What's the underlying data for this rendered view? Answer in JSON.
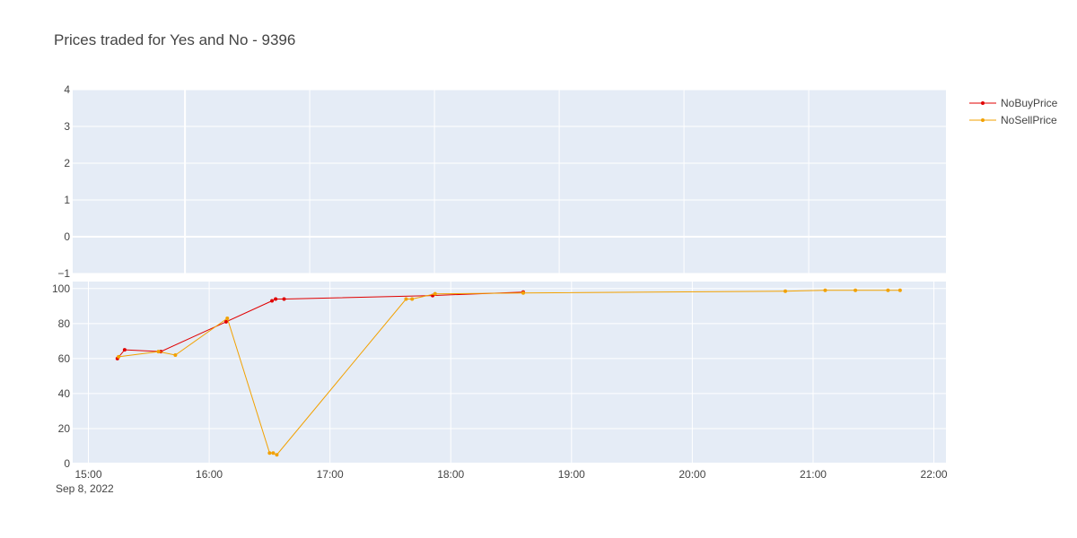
{
  "chart_data": {
    "type": "line",
    "title": "Prices traded for Yes and No - 9396",
    "legend_position": "top-right",
    "grid": true,
    "colors": {
      "plot_bg": "#e5ecf6",
      "grid": "#ffffff",
      "text": "#444444"
    },
    "top_panel": {
      "ylim": [
        -1,
        4
      ],
      "yticks": [
        4,
        3,
        2,
        1,
        0,
        -1
      ],
      "ytick_labels": [
        "4",
        "3",
        "2",
        "1",
        "0",
        "−1"
      ],
      "xlim": [
        -0.9,
        6.1
      ],
      "xgrid": [
        0,
        1,
        2,
        3,
        4,
        5
      ]
    },
    "bottom_panel": {
      "ylim": [
        0,
        104
      ],
      "yticks": [
        0,
        20,
        40,
        60,
        80,
        100
      ],
      "ytick_labels": [
        "0",
        "20",
        "40",
        "60",
        "80",
        "100"
      ],
      "xlim": [
        14.87,
        22.1
      ],
      "xticks": [
        15,
        16,
        17,
        18,
        19,
        20,
        21,
        22
      ],
      "xtick_labels": [
        "15:00",
        "16:00",
        "17:00",
        "18:00",
        "19:00",
        "20:00",
        "21:00",
        "22:00"
      ],
      "x_date_label": "Sep 8, 2022"
    },
    "series": [
      {
        "name": "NoBuyPrice",
        "color": "#d62728",
        "stroke": "#e00000",
        "x": [
          15.24,
          15.3,
          15.6,
          16.14,
          16.52,
          16.55,
          16.62,
          17.85,
          18.6
        ],
        "y": [
          60,
          65,
          64,
          81,
          93,
          94,
          94,
          96,
          98
        ]
      },
      {
        "name": "NoSellPrice",
        "color": "#f2a100",
        "stroke": "#f2a100",
        "x": [
          15.25,
          15.58,
          15.72,
          16.15,
          16.5,
          16.53,
          16.56,
          17.63,
          17.68,
          17.87,
          18.6,
          20.77,
          21.1,
          21.35,
          21.62,
          21.72
        ],
        "y": [
          61,
          64,
          62,
          83,
          6,
          6,
          5,
          94,
          94,
          97,
          97.5,
          98.5,
          99,
          99,
          99,
          99
        ]
      }
    ]
  }
}
